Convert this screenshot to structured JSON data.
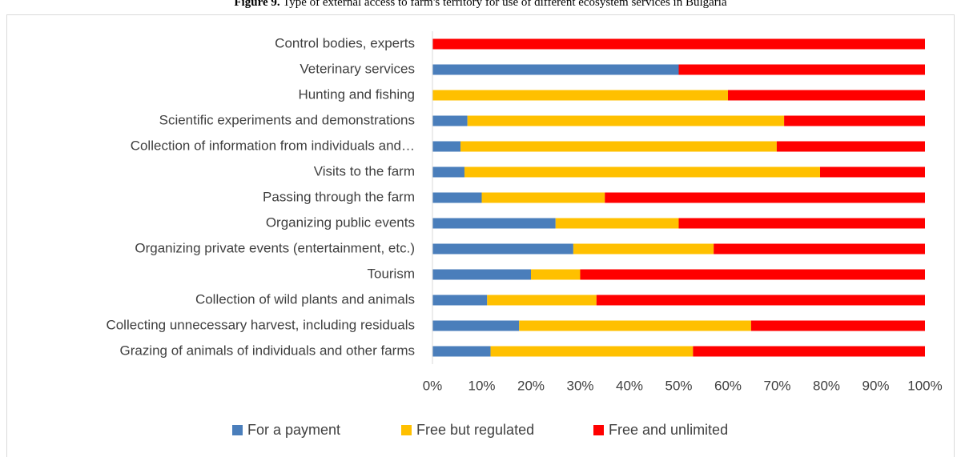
{
  "chart_data": {
    "type": "stacked-barh",
    "title_prefix": "Figure 9.",
    "title": "Type of external access to farm's territory for use of different ecosystem services in Bulgaria",
    "categories": [
      "Control bodies, experts",
      "Veterinary services",
      "Hunting and fishing",
      "Scientific experiments and demonstrations",
      "Collection of information from individuals and…",
      "Visits to the farm",
      "Passing through the farm",
      "Organizing public events",
      "Organizing private events (entertainment, etc.)",
      "Tourism",
      "Collection of wild plants and animals",
      "Collecting unnecessary harvest, including residuals",
      "Grazing of animals of individuals and other farms"
    ],
    "series": [
      {
        "name": "For a payment",
        "color": "#4a7ebb",
        "values": [
          0,
          50,
          0,
          7.1,
          5.7,
          6.5,
          10,
          25,
          28.6,
          20,
          11.1,
          17.6,
          11.8
        ]
      },
      {
        "name": "Free but regulated",
        "color": "#ffc000",
        "values": [
          0,
          0,
          60,
          64.3,
          64.2,
          72.2,
          25,
          25,
          28.5,
          10,
          22.2,
          47.1,
          41.1
        ]
      },
      {
        "name": "Free and unlimited",
        "color": "#ff0000",
        "values": [
          100,
          50,
          40,
          28.6,
          30.1,
          21.3,
          65,
          50,
          42.9,
          70,
          66.7,
          35.3,
          47.1
        ]
      }
    ],
    "xlim": [
      0,
      100
    ],
    "xticks": [
      {
        "value": 0,
        "label": "0%"
      },
      {
        "value": 10,
        "label": "10%"
      },
      {
        "value": 20,
        "label": "20%"
      },
      {
        "value": 30,
        "label": "30%"
      },
      {
        "value": 40,
        "label": "40%"
      },
      {
        "value": 50,
        "label": "50%"
      },
      {
        "value": 60,
        "label": "60%"
      },
      {
        "value": 70,
        "label": "70%"
      },
      {
        "value": 80,
        "label": "80%"
      },
      {
        "value": 90,
        "label": "90%"
      },
      {
        "value": 100,
        "label": "100%"
      }
    ],
    "legend": "bottom"
  }
}
